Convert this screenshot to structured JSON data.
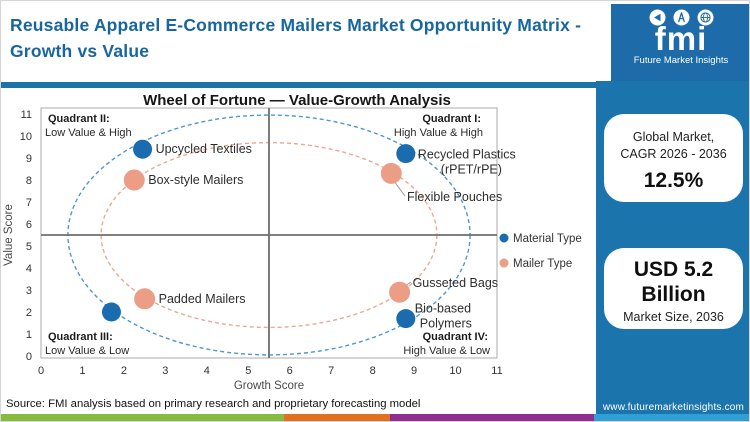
{
  "header": {
    "title_line1": "Reusable Apparel E-Commerce Mailers Market Opportunity Matrix -",
    "title_line2": "Growth vs Value"
  },
  "logo": {
    "brand": "fmi",
    "tagline": "Future Market Insights",
    "icons": [
      "megaphone-icon",
      "compass-icon",
      "globe-icon"
    ]
  },
  "sidebar": {
    "bg_color": "#1c74ad",
    "cagr_card": {
      "line1": "Global Market,",
      "line2": "CAGR 2026 - 2036",
      "value": "12.5%"
    },
    "size_card": {
      "value": "USD 5.2 Billion",
      "label": "Market Size, 2036"
    },
    "website": "www.futuremarketinsights.com"
  },
  "footer": {
    "source": "Source: FMI analysis based on primary research and proprietary forecasting model",
    "strip_colors": [
      "#86bb40",
      "#e2701f",
      "#8f2e8f",
      "#2f9fd8"
    ]
  },
  "chart_data": {
    "type": "scatter",
    "title": "Wheel of Fortune — Value-Growth Analysis",
    "xlabel": "Growth Score",
    "ylabel": "Value Score",
    "xlim": [
      0,
      11
    ],
    "ylim": [
      0,
      11
    ],
    "xticks": [
      0,
      1,
      2,
      3,
      4,
      5,
      6,
      7,
      8,
      9,
      10,
      11
    ],
    "yticks": [
      0,
      1,
      2,
      3,
      4,
      5,
      6,
      7,
      8,
      9,
      10,
      11
    ],
    "grid": false,
    "quadrant_split": {
      "x": 5.5,
      "y": 5.5
    },
    "quadrant_labels": [
      {
        "name": "Quadrant I:",
        "desc": "High Value & High",
        "pos": "top-right"
      },
      {
        "name": "Quadrant II:",
        "desc": "Low Value & High",
        "pos": "top-left"
      },
      {
        "name": "Quadrant III:",
        "desc": "Low Value & Low",
        "pos": "bottom-left"
      },
      {
        "name": "Quadrant IV:",
        "desc": "High Value & Low",
        "pos": "bottom-right"
      }
    ],
    "legend": {
      "position": "right",
      "entries": [
        {
          "label": "Material Type",
          "color": "#1b6cae"
        },
        {
          "label": "Mailer Type",
          "color": "#eb9d86"
        }
      ]
    },
    "rings": [
      {
        "series": "Material Type",
        "color": "#4e97cf",
        "cx": 5.5,
        "cy": 5.5,
        "rx": 4.85,
        "ry": 5.45
      },
      {
        "series": "Mailer Type",
        "color": "#eba892",
        "cx": 5.5,
        "cy": 5.5,
        "rx": 4.05,
        "ry": 4.2
      }
    ],
    "series": [
      {
        "name": "Material Type",
        "color": "#1b6cae",
        "points": [
          {
            "label": "Upcycled Textiles",
            "growth": 2.45,
            "value": 9.4
          },
          {
            "label": "Recycled Plastics\n(rPET/rPE)",
            "growth": 8.8,
            "value": 9.2
          },
          {
            "label": "Bio-based\nPolymers",
            "growth": 8.8,
            "value": 1.7
          },
          {
            "label": "",
            "growth": 1.7,
            "value": 2.0
          }
        ]
      },
      {
        "name": "Mailer Type",
        "color": "#eb9d86",
        "points": [
          {
            "label": "Box-style Mailers",
            "growth": 2.25,
            "value": 8.0
          },
          {
            "label": "Flexible Pouches",
            "growth": 8.45,
            "value": 8.3
          },
          {
            "label": "Padded Mailers",
            "growth": 2.5,
            "value": 2.6
          },
          {
            "label": "Gusseted Bags",
            "growth": 8.65,
            "value": 2.9
          }
        ]
      }
    ]
  }
}
